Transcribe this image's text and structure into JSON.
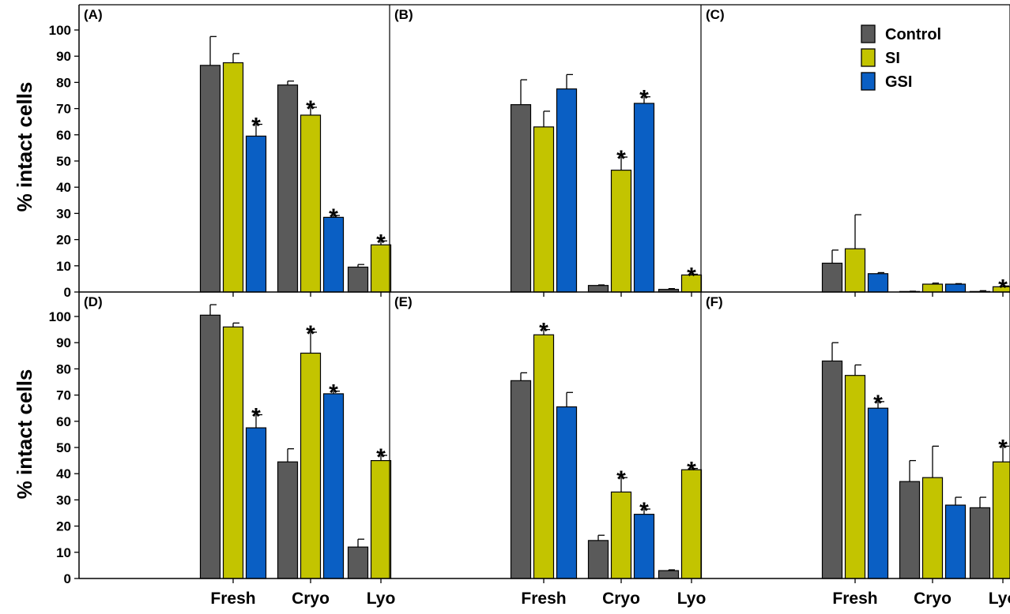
{
  "chart_data": {
    "type": "bar",
    "ylabel": "% intact cells",
    "yticks": [
      0,
      10,
      20,
      30,
      40,
      50,
      60,
      70,
      80,
      90,
      100
    ],
    "ylim": [
      0,
      105
    ],
    "categories": [
      "Fresh",
      "Cryo",
      "Lyo"
    ],
    "legend": {
      "placement": "top-right",
      "entries": [
        {
          "name": "Control",
          "color": "#5a5a5a"
        },
        {
          "name": "SI",
          "color": "#c3c400"
        },
        {
          "name": "GSI",
          "color": "#0a5fc4"
        }
      ]
    },
    "panels": [
      {
        "label": "(A)",
        "series": [
          {
            "name": "Control",
            "values": [
              86.5,
              79,
              9.5
            ],
            "errors": [
              11,
              1.5,
              1
            ],
            "sig": [
              false,
              false,
              false
            ]
          },
          {
            "name": "SI",
            "values": [
              87.5,
              67.5,
              18
            ],
            "errors": [
              3.5,
              3,
              1.5
            ],
            "sig": [
              false,
              true,
              true
            ]
          },
          {
            "name": "GSI",
            "values": [
              59.5,
              28.5,
              null
            ],
            "errors": [
              4.5,
              0.7,
              null
            ],
            "sig": [
              true,
              true,
              false
            ]
          }
        ]
      },
      {
        "label": "(B)",
        "series": [
          {
            "name": "Control",
            "values": [
              71.5,
              2.5,
              1
            ],
            "errors": [
              9.5,
              0.2,
              0.3
            ],
            "sig": [
              false,
              false,
              false
            ]
          },
          {
            "name": "SI",
            "values": [
              63,
              46.5,
              6.5
            ],
            "errors": [
              6,
              5,
              0.3
            ],
            "sig": [
              false,
              true,
              true
            ]
          },
          {
            "name": "GSI",
            "values": [
              77.5,
              72,
              null
            ],
            "errors": [
              5.5,
              2.5,
              null
            ],
            "sig": [
              false,
              true,
              false
            ]
          }
        ]
      },
      {
        "label": "(C)",
        "series": [
          {
            "name": "Control",
            "values": [
              11,
              0.2,
              0.2
            ],
            "errors": [
              5,
              0.1,
              0.3
            ],
            "sig": [
              false,
              false,
              false
            ]
          },
          {
            "name": "SI",
            "values": [
              16.5,
              3,
              2
            ],
            "errors": [
              13,
              0.4,
              0.3
            ],
            "sig": [
              false,
              false,
              true
            ]
          },
          {
            "name": "GSI",
            "values": [
              7,
              3,
              null
            ],
            "errors": [
              0.4,
              0.2,
              null
            ],
            "sig": [
              false,
              false,
              false
            ]
          }
        ]
      },
      {
        "label": "(D)",
        "series": [
          {
            "name": "Control",
            "values": [
              100.5,
              44.5,
              12
            ],
            "errors": [
              4,
              5,
              3
            ],
            "sig": [
              false,
              false,
              false
            ]
          },
          {
            "name": "SI",
            "values": [
              96,
              86,
              45
            ],
            "errors": [
              1.5,
              8,
              2
            ],
            "sig": [
              false,
              true,
              true
            ]
          },
          {
            "name": "GSI",
            "values": [
              57.5,
              70.5,
              null
            ],
            "errors": [
              5,
              1,
              null
            ],
            "sig": [
              true,
              true,
              false
            ]
          }
        ]
      },
      {
        "label": "(E)",
        "series": [
          {
            "name": "Control",
            "values": [
              75.5,
              14.5,
              3
            ],
            "errors": [
              3,
              2,
              0.3
            ],
            "sig": [
              false,
              false,
              false
            ]
          },
          {
            "name": "SI",
            "values": [
              93,
              33,
              41.5
            ],
            "errors": [
              2,
              5.5,
              0.5
            ],
            "sig": [
              true,
              true,
              true
            ]
          },
          {
            "name": "GSI",
            "values": [
              65.5,
              24.5,
              null
            ],
            "errors": [
              5.5,
              2,
              null
            ],
            "sig": [
              false,
              true,
              false
            ]
          }
        ]
      },
      {
        "label": "(F)",
        "series": [
          {
            "name": "Control",
            "values": [
              83,
              37,
              27
            ],
            "errors": [
              7,
              8,
              4
            ],
            "sig": [
              false,
              false,
              false
            ]
          },
          {
            "name": "SI",
            "values": [
              77.5,
              38.5,
              44.5
            ],
            "errors": [
              4,
              12,
              6
            ],
            "sig": [
              false,
              false,
              true
            ]
          },
          {
            "name": "GSI",
            "values": [
              65,
              28,
              null
            ],
            "errors": [
              2.5,
              3,
              null
            ],
            "sig": [
              true,
              false,
              false
            ]
          }
        ]
      }
    ]
  }
}
